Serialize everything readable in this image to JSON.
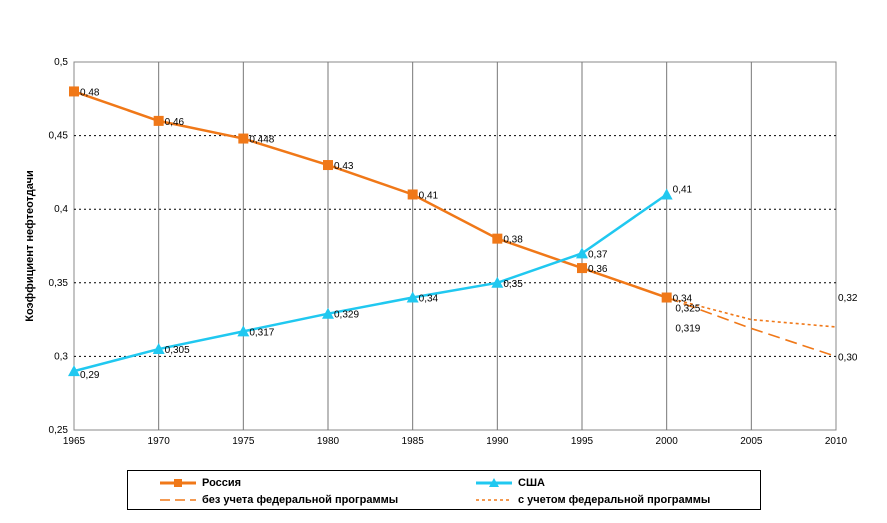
{
  "chart_data": {
    "type": "line",
    "ylabel": "Коэффициент нефтеотдачи",
    "xlabel": "",
    "xlim": [
      1965,
      2010
    ],
    "ylim": [
      0.25,
      0.5
    ],
    "x_ticks": [
      "1965",
      "1970",
      "1975",
      "1980",
      "1985",
      "1990",
      "1995",
      "2000",
      "2005",
      "2010"
    ],
    "y_ticks": [
      "0,25",
      "0,3",
      "0,35",
      "0,4",
      "0,45",
      "0,5"
    ],
    "grid": true,
    "legend_position": "bottom",
    "series": [
      {
        "name": "Россия",
        "color": "#f07818",
        "marker": "square",
        "style": "solid",
        "x": [
          1965,
          1970,
          1975,
          1980,
          1985,
          1990,
          1995,
          2000
        ],
        "y": [
          0.48,
          0.46,
          0.448,
          0.43,
          0.41,
          0.38,
          0.36,
          0.34
        ],
        "labels": [
          "0,48",
          "0,46",
          "0,448",
          "0,43",
          "0,41",
          "0,38",
          "0,36",
          "0,34"
        ]
      },
      {
        "name": "США",
        "color": "#20c8f0",
        "marker": "triangle",
        "style": "solid",
        "x": [
          1965,
          1970,
          1975,
          1980,
          1985,
          1990,
          1995,
          2000
        ],
        "y": [
          0.29,
          0.305,
          0.317,
          0.329,
          0.34,
          0.35,
          0.37,
          0.41
        ],
        "labels": [
          "0,29",
          "0,305",
          "0,317",
          "0,329",
          "0,34",
          "0,35",
          "0,37",
          "0,41"
        ]
      },
      {
        "name": "без учета федеральной программы",
        "color": "#f07818",
        "marker": "none",
        "style": "long-dash",
        "x": [
          2000,
          2005,
          2010
        ],
        "y": [
          0.34,
          0.319,
          0.3
        ],
        "labels": [
          "",
          "0,319",
          "0,30"
        ]
      },
      {
        "name": "с учетом федеральной программы",
        "color": "#f07818",
        "marker": "none",
        "style": "short-dash",
        "x": [
          2000,
          2005,
          2010
        ],
        "y": [
          0.34,
          0.325,
          0.32
        ],
        "labels": [
          "",
          "0,325",
          "0,32"
        ]
      }
    ]
  }
}
